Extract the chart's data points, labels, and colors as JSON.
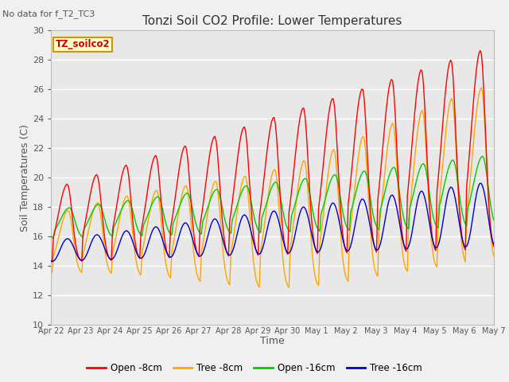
{
  "title": "Tonzi Soil CO2 Profile: Lower Temperatures",
  "subtitle": "No data for f_T2_TC3",
  "xlabel": "Time",
  "ylabel": "Soil Temperatures (C)",
  "ylim": [
    10,
    30
  ],
  "tick_labels": [
    "Apr 22",
    "Apr 23",
    "Apr 24",
    "Apr 25",
    "Apr 26",
    "Apr 27",
    "Apr 28",
    "Apr 29",
    "Apr 30",
    "May 1",
    "May 2",
    "May 3",
    "May 4",
    "May 5",
    "May 6",
    "May 7"
  ],
  "legend_label": "TZ_soilco2",
  "bg_color": "#e8e8e8",
  "grid_color": "#ffffff",
  "fig_bg_color": "#f0f0f0",
  "line_colors": {
    "open_8cm": "#ff0000",
    "tree_8cm": "#ffa500",
    "open_16cm": "#00cc00",
    "tree_16cm": "#0000cc"
  },
  "legend_entries": [
    "Open -8cm",
    "Tree -8cm",
    "Open -16cm",
    "Tree -16cm"
  ]
}
